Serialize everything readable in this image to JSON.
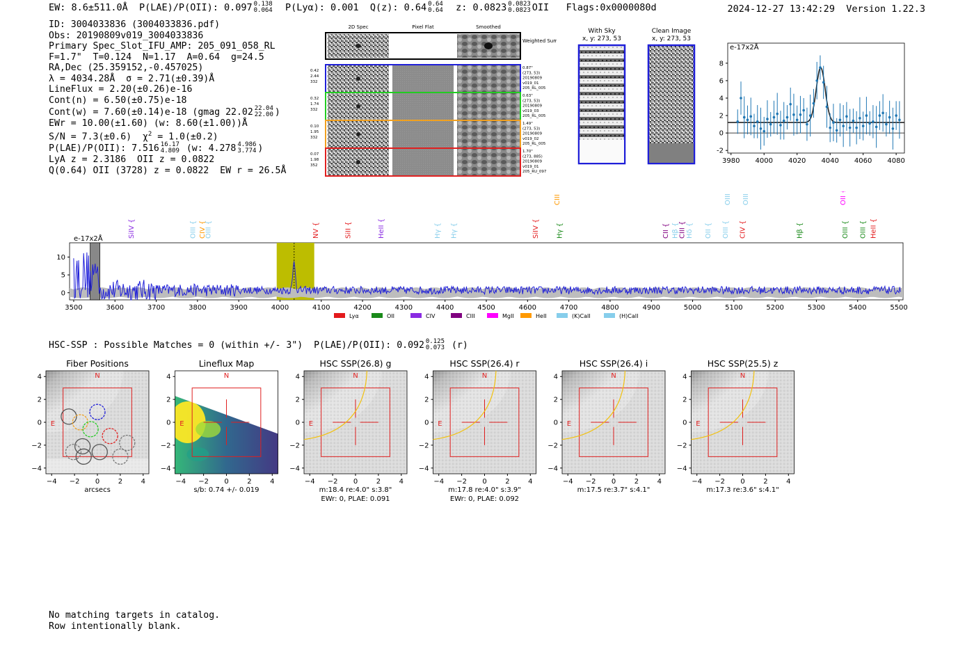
{
  "header": {
    "left_text": "EW: 8.6±511.0Å  P(LAE)/P(OII): 0.097",
    "plae_hi": "0.138",
    "plae_lo": "0.064",
    "lya_text": "P(Lyα): 0.001  Q(z): 0.64",
    "qz_hi": "0.64",
    "qz_lo": "0.64",
    "z_text": "z: 0.0823",
    "z_hi": "0.0823",
    "z_lo": "0.0823",
    "tail_text": "OII   Flags:0x0000080d",
    "timestamp": "2024-12-27 13:42:29  Version 1.22.3"
  },
  "info": {
    "id": "ID: 3004033836 (3004033836.pdf)",
    "obs": "Obs: 20190809v019_3004033836",
    "slot": "Primary Spec_Slot_IFU_AMP: 205_091_058_RL",
    "params": "F=1.7\"  T=0.124  N=1.17  A=0.64  g=24.5",
    "radec": "RA,Dec (25.359152,-0.457025)",
    "lambda": "λ = 4034.28Å  σ = 2.71(±0.39)Å",
    "lineflux": "LineFlux = 2.20(±0.26)e-16",
    "contn": "Cont(n) = 6.50(±0.75)e-18",
    "contw": "Cont(w) = 7.60(±0.14)e-18 (gmag 22.02",
    "gmag_hi": "22.04",
    "gmag_lo": "22.00",
    "ewr": "EWr = 10.00(±1.60) (w: 8.60(±1.00))Å",
    "sn": "S/N = 7.3(±0.6)  χ",
    "sn_sup": "2",
    "sn_tail": " = 1.0(±0.2)",
    "plae": "P(LAE)/P(OII): 7.516",
    "plae_hi": "16.17",
    "plae_lo": "4.809",
    "plae_w": "(w: 4.278",
    "plae_w_hi": "4.986",
    "plae_w_lo": "3.774",
    "lya_z": "LyA z = 2.3186  OII z = 0.0822",
    "q": "Q(0.64) OII (3728) z = 0.0822  EW r = 26.5Å"
  },
  "cutouts": {
    "col_2d": "2D Spec",
    "col_flat": "Pixel Flat",
    "col_smooth": "Smoothed",
    "weighted": "Weighted Sum",
    "rows": [
      {
        "l1": "0.42",
        "l2": "2.44",
        "l3": "332",
        "r1": "0.87\"",
        "r2": "(273, 53)",
        "r3": "20190809",
        "r4": "v019_01",
        "r5": "205_RL_005",
        "color": "#1f1fd8"
      },
      {
        "l1": "0.32",
        "l2": "1.74",
        "l3": "332",
        "r1": "0.63\"",
        "r2": "(273, 53)",
        "r3": "20190809",
        "r4": "v019_03",
        "r5": "205_RL_005",
        "color": "#22cc22"
      },
      {
        "l1": "0.10",
        "l2": "1.95",
        "l3": "332",
        "r1": "1.49\"",
        "r2": "(273, 53)",
        "r3": "20190809",
        "r4": "v019_02",
        "r5": "205_RL_005",
        "color": "#f0a020"
      },
      {
        "l1": "0.07",
        "l2": "1.98",
        "l3": "352",
        "r1": "1.70\"",
        "r2": "(273, 885)",
        "r3": "20190809",
        "r4": "v019_01",
        "r5": "205_RU_097",
        "color": "#e02020"
      }
    ]
  },
  "sky": {
    "with_sky_t1": "With Sky",
    "with_sky_t2": "x, y: 273, 53",
    "clean_t1": "Clean Image",
    "clean_t2": "x, y: 273, 53"
  },
  "hsc": {
    "line": "HSC-SSP : Possible Matches = 0 (within +/- 3\")  P(LAE)/P(OII): 0.092",
    "hi": "0.125",
    "lo": "0.073",
    "tail": "(r)"
  },
  "panels": [
    {
      "title": "Fiber Positions",
      "cap1": "arcsecs",
      "cap2": ""
    },
    {
      "title": "Lineflux Map",
      "cap1": "s/b: 0.74 +/- 0.019",
      "cap2": ""
    },
    {
      "title": "HSC SSP(26.8) g",
      "cap1": "m:18.4  re:4.0\"  s:3.8\"",
      "cap2": "EWr: 0, PLAE: 0.091"
    },
    {
      "title": "HSC SSP(26.4) r",
      "cap1": "m:17.8  re:4.0\"  s:3.9\"",
      "cap2": "EWr: 0, PLAE: 0.092"
    },
    {
      "title": "HSC SSP(26.4) i",
      "cap1": "m:17.5  re:3.7\"  s:4.1\"",
      "cap2": ""
    },
    {
      "title": "HSC SSP(25.5) z",
      "cap1": "m:17.3  re:3.6\"  s:4.1\"",
      "cap2": ""
    }
  ],
  "compass": {
    "n": "N",
    "e": "E"
  },
  "notes": {
    "line1": "No matching targets in catalog.",
    "line2": "Row intentionally blank."
  },
  "chart_data": [
    {
      "type": "scatter",
      "title": "Line fit zoom",
      "ylabel": "e-17x2Å",
      "xlim": [
        3978,
        4085
      ],
      "ylim": [
        -2.3,
        10.3
      ],
      "xticks": [
        3980,
        4000,
        4020,
        4040,
        4060,
        4080
      ],
      "yticks": [
        -2,
        0,
        2,
        4,
        6,
        8
      ],
      "x": [
        3984,
        3986,
        3988,
        3990,
        3992,
        3994,
        3996,
        3998,
        4000,
        4002,
        4004,
        4006,
        4008,
        4010,
        4012,
        4014,
        4016,
        4018,
        4020,
        4022,
        4024,
        4026,
        4028,
        4030,
        4032,
        4034,
        4036,
        4038,
        4040,
        4042,
        4044,
        4046,
        4048,
        4050,
        4052,
        4054,
        4056,
        4058,
        4060,
        4062,
        4064,
        4066,
        4068,
        4070,
        4072,
        4074,
        4076,
        4078,
        4080,
        4082
      ],
      "y": [
        1.3,
        4.0,
        1.8,
        1.5,
        1.9,
        0.8,
        1.3,
        0.5,
        0.2,
        1.6,
        1.0,
        1.8,
        2.2,
        0.9,
        1.4,
        1.8,
        3.3,
        2.1,
        1.5,
        2.1,
        2.6,
        1.0,
        2.0,
        3.4,
        6.0,
        7.5,
        5.8,
        3.0,
        0.6,
        1.2,
        0.3,
        1.5,
        0.8,
        1.9,
        0.6,
        1.4,
        0.6,
        1.7,
        0.8,
        2.0,
        1.1,
        1.3,
        0.7,
        2.0,
        2.3,
        1.0,
        1.8,
        0.5,
        2.0,
        1.5
      ],
      "fit": {
        "center": 4034.3,
        "sigma": 2.71,
        "continuum": 1.2,
        "amplitude": 6.3
      }
    },
    {
      "type": "line",
      "title": "Full spectrum",
      "ylabel": "e-17x2Å",
      "xlim": [
        3490,
        5510
      ],
      "ylim": [
        -2,
        14
      ],
      "xticks": [
        3500,
        3600,
        3700,
        3800,
        3900,
        4000,
        4100,
        4200,
        4300,
        4400,
        4500,
        4600,
        4700,
        4800,
        4900,
        5000,
        5100,
        5200,
        5300,
        5400,
        5500
      ],
      "yticks": [
        0,
        5,
        10
      ],
      "highlight": {
        "x0": 3992,
        "x1": 4083,
        "line": 4034.3
      },
      "masked": [
        [
          3540,
          3562
        ],
        [
          3458,
          3470
        ]
      ],
      "legend": [
        "Lyα",
        "OII",
        "CIV",
        "CIII",
        "MgII",
        "HeII",
        "(K)CaII",
        "(H)CaII"
      ],
      "legend_colors": [
        "#e31a1c",
        "#1a8a1a",
        "#8a2be2",
        "#800080",
        "#ff00ff",
        "#ff9900",
        "#87ceeb",
        "#87ceeb"
      ],
      "lines": [
        {
          "label": "SiIV",
          "x": 3640,
          "color": "#8a2be2",
          "row": 0
        },
        {
          "label": "OIII",
          "x": 3789,
          "color": "#87ceeb",
          "row": 0
        },
        {
          "label": "CIV",
          "x": 3812,
          "color": "#ff9900",
          "row": 0
        },
        {
          "label": "OIII",
          "x": 3826,
          "color": "#87ceeb",
          "row": 0
        },
        {
          "label": "NV",
          "x": 4087,
          "color": "#e31a1c",
          "row": 0
        },
        {
          "label": "SiII",
          "x": 4165,
          "color": "#e31a1c",
          "row": 0
        },
        {
          "label": "HeII",
          "x": 4245,
          "color": "#8a2be2",
          "row": 0
        },
        {
          "label": "Hγ",
          "x": 4382,
          "color": "#87ceeb",
          "row": 0
        },
        {
          "label": "Hγ",
          "x": 4422,
          "color": "#87ceeb",
          "row": 0
        },
        {
          "label": "SiIV",
          "x": 4620,
          "color": "#e31a1c",
          "row": 0
        },
        {
          "label": "CIII",
          "x": 4672,
          "color": "#ff9900",
          "row": 1
        },
        {
          "label": "Hγ",
          "x": 4678,
          "color": "#1a8a1a",
          "row": 0
        },
        {
          "label": "CII",
          "x": 4935,
          "color": "#800080",
          "row": 0
        },
        {
          "label": "Hβ",
          "x": 4958,
          "color": "#87ceeb",
          "row": 0
        },
        {
          "label": "CIII",
          "x": 4975,
          "color": "#800080",
          "row": 0
        },
        {
          "label": "Hδ",
          "x": 4992,
          "color": "#87ceeb",
          "row": 0
        },
        {
          "label": "OII",
          "x": 5038,
          "color": "#87ceeb",
          "row": 0
        },
        {
          "label": "OIII",
          "x": 5080,
          "color": "#87ceeb",
          "row": 0
        },
        {
          "label": "OIII",
          "x": 5085,
          "color": "#87ceeb",
          "row": 1
        },
        {
          "label": "CIV",
          "x": 5121,
          "color": "#e31a1c",
          "row": 0
        },
        {
          "label": "OIII",
          "x": 5129,
          "color": "#87ceeb",
          "row": 1
        },
        {
          "label": "Hβ",
          "x": 5260,
          "color": "#1a8a1a",
          "row": 0
        },
        {
          "label": "OII",
          "x": 5365,
          "color": "#ff00ff",
          "row": 1
        },
        {
          "label": "OIII",
          "x": 5370,
          "color": "#1a8a1a",
          "row": 0
        },
        {
          "label": "OIII",
          "x": 5413,
          "color": "#1a8a1a",
          "row": 0
        },
        {
          "label": "HeII",
          "x": 5438,
          "color": "#e31a1c",
          "row": 0
        }
      ]
    },
    {
      "type": "heatmap",
      "title": "Cutout panels",
      "xlim": [
        -4.5,
        4.5
      ],
      "ylim": [
        -4.5,
        4.5
      ],
      "xticks": [
        -4,
        -2,
        0,
        2,
        4
      ],
      "yticks": [
        -4,
        -2,
        0,
        2,
        4
      ],
      "box": [
        -3,
        3
      ]
    }
  ]
}
